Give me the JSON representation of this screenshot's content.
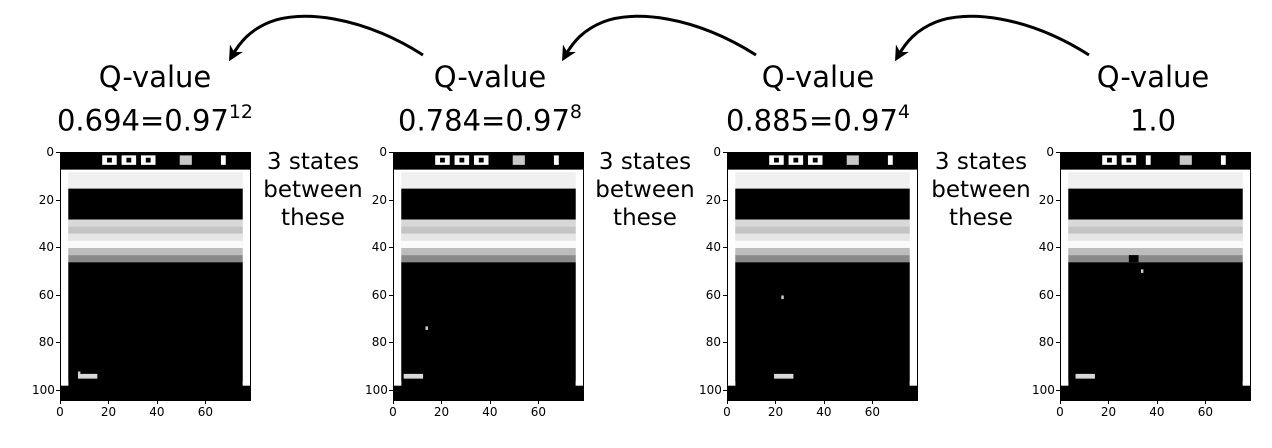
{
  "frames": [
    {
      "q_label": "Q-value",
      "q_base": "0.694=0.97",
      "q_exp": "12",
      "ball": [
        7,
        92
      ]
    },
    {
      "q_label": "Q-value",
      "q_base": "0.784=0.97",
      "q_exp": "8",
      "ball": [
        13,
        73
      ]
    },
    {
      "q_label": "Q-value",
      "q_base": "0.885=0.97",
      "q_exp": "4",
      "ball": [
        22,
        60
      ]
    },
    {
      "q_label": "Q-value",
      "q_base": "1.0",
      "q_exp": "",
      "ball": [
        33,
        49
      ]
    }
  ],
  "gap_text": {
    "line1": "3 states",
    "line2": "between",
    "line3": "these"
  },
  "axes": {
    "y_ticks": [
      "0",
      "20",
      "40",
      "60",
      "80",
      "100"
    ],
    "x_ticks": [
      "0",
      "20",
      "40",
      "60"
    ]
  }
}
